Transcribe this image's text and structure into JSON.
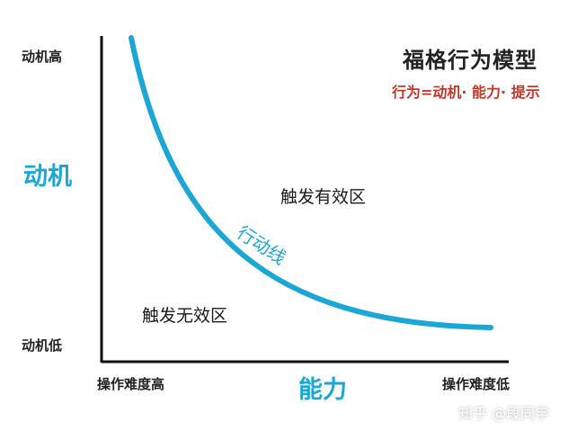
{
  "title": "福格行为模型",
  "subtitle": "行为=动机· 能力· 提示",
  "y_axis": {
    "label": "动机",
    "tick_high": "动机高",
    "tick_low": "动机低"
  },
  "x_axis": {
    "label": "能力",
    "tick_left": "操作难度高",
    "tick_right": "操作难度低"
  },
  "curve_label": "行动线",
  "regions": {
    "above": "触发有效区",
    "below": "触发无效区"
  },
  "watermark": "知乎 @段同学",
  "colors": {
    "accent": "#1aa7d6",
    "subtitle": "#c0392b",
    "axis": "#111111",
    "text": "#222222"
  }
}
